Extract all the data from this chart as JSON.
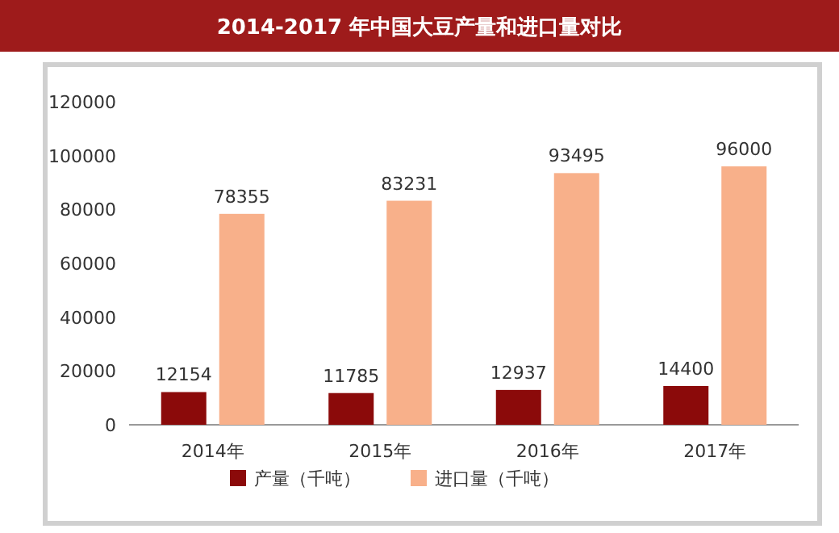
{
  "chart_data": {
    "type": "bar",
    "title": "2014-2017 年中国大豆产量和进口量对比",
    "categories": [
      "2014年",
      "2015年",
      "2016年",
      "2017年"
    ],
    "series": [
      {
        "name": "产量（千吨）",
        "color": "#8b0a0a",
        "values": [
          12154,
          11785,
          12937,
          14400
        ]
      },
      {
        "name": "进口量（千吨）",
        "color": "#f8b08a",
        "values": [
          78355,
          83231,
          93495,
          96000
        ]
      }
    ],
    "ylim": [
      0,
      120000
    ],
    "yticks": [
      0,
      20000,
      40000,
      60000,
      80000,
      100000,
      120000
    ],
    "data_labels": true,
    "legend": "bottom",
    "grid": false
  }
}
